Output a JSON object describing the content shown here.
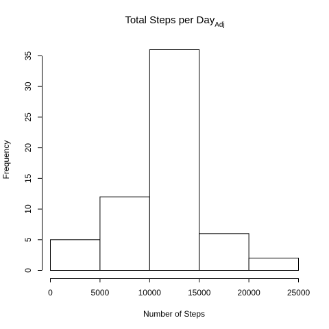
{
  "chart_data": {
    "type": "bar",
    "title": "Total Steps per Day",
    "title_subscript": "Adj",
    "xlabel": "Number of Steps",
    "ylabel": "Frequency",
    "bins": [
      {
        "from": 0,
        "to": 5000,
        "count": 5
      },
      {
        "from": 5000,
        "to": 10000,
        "count": 12
      },
      {
        "from": 10000,
        "to": 15000,
        "count": 36
      },
      {
        "from": 15000,
        "to": 20000,
        "count": 6
      },
      {
        "from": 20000,
        "to": 25000,
        "count": 2
      }
    ],
    "xlim": [
      0,
      25000
    ],
    "ylim": [
      0,
      36
    ],
    "x_ticks": [
      0,
      5000,
      10000,
      15000,
      20000,
      25000
    ],
    "y_ticks": [
      0,
      5,
      10,
      15,
      20,
      25,
      30,
      35
    ],
    "grid": false,
    "legend": "none"
  }
}
